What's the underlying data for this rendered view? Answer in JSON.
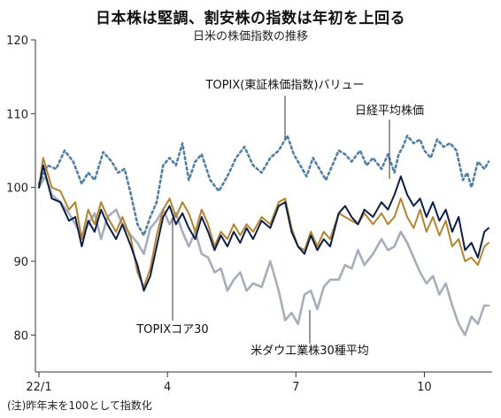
{
  "header": {
    "title": "日本株は堅調、割安株の指数は年初を上回る",
    "subtitle": "日米の株価指数の推移"
  },
  "footer": {
    "note": "(注)昨年末を100として指数化"
  },
  "chart_data": {
    "type": "line",
    "xlim": [
      0,
      10.5
    ],
    "ylim": [
      75,
      120
    ],
    "yticks": [
      80,
      90,
      100,
      110,
      120
    ],
    "xticks": [
      {
        "x": 0,
        "label": "22/1"
      },
      {
        "x": 3,
        "label": "4"
      },
      {
        "x": 6,
        "label": "7"
      },
      {
        "x": 9,
        "label": "10"
      }
    ],
    "grid": false,
    "series": [
      {
        "name": "TOPIX(東証株価指数)バリュー",
        "color": "#4f7fa6",
        "dash": "dotted",
        "points": [
          [
            0,
            100.5
          ],
          [
            0.2,
            103
          ],
          [
            0.4,
            102.5
          ],
          [
            0.6,
            105
          ],
          [
            0.8,
            103.5
          ],
          [
            1.0,
            100.5
          ],
          [
            1.15,
            102
          ],
          [
            1.3,
            101
          ],
          [
            1.5,
            104.8
          ],
          [
            1.7,
            103.5
          ],
          [
            1.85,
            102
          ],
          [
            2.0,
            102.5
          ],
          [
            2.15,
            99
          ],
          [
            2.3,
            95
          ],
          [
            2.45,
            93.5
          ],
          [
            2.6,
            96
          ],
          [
            2.75,
            98
          ],
          [
            2.9,
            103
          ],
          [
            3.05,
            104
          ],
          [
            3.2,
            103
          ],
          [
            3.35,
            106
          ],
          [
            3.5,
            101
          ],
          [
            3.65,
            103.5
          ],
          [
            3.8,
            104.5
          ],
          [
            4.0,
            101
          ],
          [
            4.2,
            99.5
          ],
          [
            4.4,
            101.5
          ],
          [
            4.6,
            104
          ],
          [
            4.8,
            105.5
          ],
          [
            5.0,
            103
          ],
          [
            5.2,
            102
          ],
          [
            5.4,
            104
          ],
          [
            5.6,
            105
          ],
          [
            5.8,
            107
          ],
          [
            5.95,
            104.5
          ],
          [
            6.1,
            103
          ],
          [
            6.25,
            101.5
          ],
          [
            6.4,
            104
          ],
          [
            6.55,
            102.5
          ],
          [
            6.7,
            101
          ],
          [
            6.85,
            103
          ],
          [
            7.0,
            105
          ],
          [
            7.15,
            104.5
          ],
          [
            7.3,
            103.5
          ],
          [
            7.5,
            105
          ],
          [
            7.65,
            103
          ],
          [
            7.8,
            104
          ],
          [
            8.0,
            102.5
          ],
          [
            8.15,
            104.5
          ],
          [
            8.3,
            102
          ],
          [
            8.4,
            104.5
          ],
          [
            8.5,
            105.5
          ],
          [
            8.6,
            107
          ],
          [
            8.75,
            106
          ],
          [
            8.9,
            106.5
          ],
          [
            9.0,
            105
          ],
          [
            9.15,
            104
          ],
          [
            9.3,
            106.5
          ],
          [
            9.45,
            105.5
          ],
          [
            9.6,
            106
          ],
          [
            9.75,
            105
          ],
          [
            9.9,
            101
          ],
          [
            10.0,
            102
          ],
          [
            10.1,
            100
          ],
          [
            10.25,
            103.5
          ],
          [
            10.4,
            102.5
          ],
          [
            10.5,
            103.5
          ]
        ]
      },
      {
        "name": "日経平均株価",
        "color": "#0b1f4d",
        "dash": "solid",
        "points": [
          [
            0,
            100
          ],
          [
            0.1,
            103
          ],
          [
            0.3,
            98.5
          ],
          [
            0.5,
            98
          ],
          [
            0.7,
            95.5
          ],
          [
            0.85,
            96
          ],
          [
            1.0,
            92
          ],
          [
            1.15,
            95.5
          ],
          [
            1.3,
            94
          ],
          [
            1.45,
            97
          ],
          [
            1.6,
            95
          ],
          [
            1.8,
            93
          ],
          [
            1.95,
            95
          ],
          [
            2.15,
            92
          ],
          [
            2.3,
            89.5
          ],
          [
            2.45,
            86
          ],
          [
            2.6,
            88
          ],
          [
            2.75,
            92
          ],
          [
            2.9,
            96
          ],
          [
            3.05,
            97.5
          ],
          [
            3.2,
            95
          ],
          [
            3.35,
            96.5
          ],
          [
            3.5,
            94.5
          ],
          [
            3.65,
            93
          ],
          [
            3.8,
            96
          ],
          [
            3.95,
            94
          ],
          [
            4.1,
            91.5
          ],
          [
            4.25,
            93.5
          ],
          [
            4.4,
            92
          ],
          [
            4.55,
            94
          ],
          [
            4.7,
            92.5
          ],
          [
            4.85,
            94.5
          ],
          [
            5.0,
            93
          ],
          [
            5.2,
            95.5
          ],
          [
            5.4,
            94.5
          ],
          [
            5.6,
            97.5
          ],
          [
            5.75,
            98
          ],
          [
            5.9,
            94
          ],
          [
            6.05,
            92
          ],
          [
            6.2,
            91
          ],
          [
            6.35,
            93.5
          ],
          [
            6.5,
            91.5
          ],
          [
            6.65,
            93
          ],
          [
            6.8,
            92
          ],
          [
            7.0,
            96.5
          ],
          [
            7.15,
            97.5
          ],
          [
            7.3,
            96
          ],
          [
            7.45,
            95
          ],
          [
            7.6,
            97
          ],
          [
            7.8,
            96
          ],
          [
            8.0,
            98
          ],
          [
            8.15,
            97
          ],
          [
            8.3,
            99
          ],
          [
            8.45,
            101.5
          ],
          [
            8.6,
            99
          ],
          [
            8.75,
            97.5
          ],
          [
            8.9,
            98.5
          ],
          [
            9.05,
            96
          ],
          [
            9.2,
            98
          ],
          [
            9.35,
            95.5
          ],
          [
            9.5,
            97
          ],
          [
            9.65,
            94
          ],
          [
            9.8,
            96
          ],
          [
            9.95,
            91.5
          ],
          [
            10.1,
            92.5
          ],
          [
            10.25,
            90.5
          ],
          [
            10.4,
            94
          ],
          [
            10.5,
            94.5
          ]
        ]
      },
      {
        "name": "TOPIXコア30",
        "color": "#b5842a",
        "dash": "solid",
        "points": [
          [
            0,
            100
          ],
          [
            0.1,
            104
          ],
          [
            0.3,
            100
          ],
          [
            0.5,
            99.5
          ],
          [
            0.7,
            97
          ],
          [
            0.85,
            98
          ],
          [
            1.0,
            93
          ],
          [
            1.15,
            97
          ],
          [
            1.3,
            95
          ],
          [
            1.45,
            98
          ],
          [
            1.6,
            96
          ],
          [
            1.8,
            94
          ],
          [
            1.95,
            96
          ],
          [
            2.15,
            93
          ],
          [
            2.3,
            88.5
          ],
          [
            2.45,
            86.5
          ],
          [
            2.6,
            89
          ],
          [
            2.75,
            93.5
          ],
          [
            2.9,
            97
          ],
          [
            3.05,
            98.5
          ],
          [
            3.2,
            96
          ],
          [
            3.35,
            98
          ],
          [
            3.5,
            96.5
          ],
          [
            3.65,
            94
          ],
          [
            3.8,
            97
          ],
          [
            3.95,
            95
          ],
          [
            4.1,
            92
          ],
          [
            4.25,
            94
          ],
          [
            4.4,
            93
          ],
          [
            4.55,
            95
          ],
          [
            4.7,
            93.5
          ],
          [
            4.85,
            95
          ],
          [
            5.0,
            94
          ],
          [
            5.2,
            96
          ],
          [
            5.4,
            95
          ],
          [
            5.6,
            98
          ],
          [
            5.75,
            98.5
          ],
          [
            5.9,
            94.5
          ],
          [
            6.05,
            92
          ],
          [
            6.2,
            91.5
          ],
          [
            6.35,
            94
          ],
          [
            6.5,
            92
          ],
          [
            6.65,
            94
          ],
          [
            6.8,
            93
          ],
          [
            7.0,
            96.5
          ],
          [
            7.15,
            96
          ],
          [
            7.3,
            95.5
          ],
          [
            7.45,
            95
          ],
          [
            7.6,
            96.5
          ],
          [
            7.8,
            95
          ],
          [
            8.0,
            96.5
          ],
          [
            8.15,
            95
          ],
          [
            8.3,
            96
          ],
          [
            8.45,
            98.5
          ],
          [
            8.6,
            96
          ],
          [
            8.75,
            94.5
          ],
          [
            8.9,
            97
          ],
          [
            9.05,
            94
          ],
          [
            9.2,
            96
          ],
          [
            9.35,
            93.5
          ],
          [
            9.5,
            95.5
          ],
          [
            9.65,
            92
          ],
          [
            9.8,
            93
          ],
          [
            9.95,
            90
          ],
          [
            10.1,
            90.5
          ],
          [
            10.25,
            89.5
          ],
          [
            10.4,
            92
          ],
          [
            10.5,
            92.5
          ]
        ]
      },
      {
        "name": "米ダウ工業株30種平均",
        "color": "#a9adba",
        "dash": "solid",
        "points": [
          [
            0,
            100
          ],
          [
            0.15,
            101.5
          ],
          [
            0.3,
            99
          ],
          [
            0.5,
            98
          ],
          [
            0.7,
            96.5
          ],
          [
            0.85,
            95
          ],
          [
            1.0,
            93.5
          ],
          [
            1.15,
            95
          ],
          [
            1.3,
            96.5
          ],
          [
            1.45,
            93
          ],
          [
            1.6,
            96
          ],
          [
            1.8,
            97
          ],
          [
            1.95,
            95
          ],
          [
            2.15,
            93.5
          ],
          [
            2.3,
            92.5
          ],
          [
            2.45,
            91
          ],
          [
            2.6,
            94.5
          ],
          [
            2.75,
            95.5
          ],
          [
            2.9,
            97
          ],
          [
            3.05,
            95
          ],
          [
            3.2,
            96.5
          ],
          [
            3.35,
            94
          ],
          [
            3.5,
            92
          ],
          [
            3.65,
            94
          ],
          [
            3.8,
            91
          ],
          [
            3.95,
            90.5
          ],
          [
            4.1,
            88.5
          ],
          [
            4.25,
            89
          ],
          [
            4.4,
            86
          ],
          [
            4.55,
            87.5
          ],
          [
            4.7,
            88.5
          ],
          [
            4.85,
            86
          ],
          [
            5.0,
            87
          ],
          [
            5.2,
            86.5
          ],
          [
            5.4,
            90
          ],
          [
            5.6,
            86
          ],
          [
            5.75,
            82
          ],
          [
            5.9,
            83
          ],
          [
            6.05,
            81.5
          ],
          [
            6.2,
            85.5
          ],
          [
            6.35,
            86
          ],
          [
            6.5,
            83.5
          ],
          [
            6.65,
            86.5
          ],
          [
            6.8,
            87.5
          ],
          [
            7.0,
            87.5
          ],
          [
            7.15,
            89.5
          ],
          [
            7.3,
            89
          ],
          [
            7.45,
            91.5
          ],
          [
            7.6,
            89.5
          ],
          [
            7.8,
            91
          ],
          [
            8.0,
            93
          ],
          [
            8.15,
            91.5
          ],
          [
            8.3,
            92
          ],
          [
            8.45,
            94
          ],
          [
            8.6,
            92.5
          ],
          [
            8.75,
            90.5
          ],
          [
            8.9,
            88.5
          ],
          [
            9.05,
            87
          ],
          [
            9.2,
            88
          ],
          [
            9.35,
            85.5
          ],
          [
            9.5,
            87
          ],
          [
            9.65,
            84
          ],
          [
            9.8,
            81.5
          ],
          [
            9.95,
            80
          ],
          [
            10.1,
            82.5
          ],
          [
            10.25,
            81.5
          ],
          [
            10.4,
            84
          ],
          [
            10.5,
            84
          ]
        ]
      }
    ],
    "annotations": [
      {
        "series": 0,
        "text": "TOPIX(東証株価指数)バリュー"
      },
      {
        "series": 1,
        "text": "日経平均株価"
      },
      {
        "series": 2,
        "text": "TOPIXコア30"
      },
      {
        "series": 3,
        "text": "米ダウ工業株30種平均"
      }
    ]
  }
}
